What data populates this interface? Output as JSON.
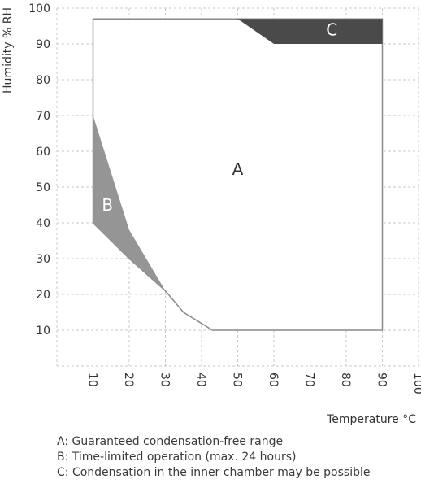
{
  "chart_data": {
    "type": "area",
    "title": "",
    "xlabel": "Temperature °C",
    "ylabel": "Humidity % RH",
    "xlim": [
      0,
      100
    ],
    "ylim": [
      0,
      100
    ],
    "x_ticks": [
      "10",
      "20",
      "30",
      "40",
      "50",
      "60",
      "70",
      "80",
      "90",
      "100"
    ],
    "y_ticks": [
      "10",
      "20",
      "30",
      "40",
      "50",
      "60",
      "70",
      "80",
      "90",
      "100"
    ],
    "grid": true,
    "regions": [
      {
        "label": "A",
        "color": "#ffffff",
        "points": [
          [
            10,
            97
          ],
          [
            90,
            97
          ],
          [
            90,
            10
          ],
          [
            43,
            10
          ],
          [
            35,
            15
          ],
          [
            30,
            21
          ],
          [
            20,
            30
          ],
          [
            10,
            40
          ]
        ]
      },
      {
        "label": "B",
        "color": "#959595",
        "points": [
          [
            10,
            70
          ],
          [
            20,
            38
          ],
          [
            30,
            21
          ],
          [
            20,
            30
          ],
          [
            10,
            40
          ]
        ]
      },
      {
        "label": "C",
        "color": "#4a4a4a",
        "points": [
          [
            50,
            97
          ],
          [
            90,
            97
          ],
          [
            90,
            90
          ],
          [
            60,
            90
          ]
        ]
      }
    ],
    "region_labels": [
      {
        "text": "A",
        "x": 50,
        "y": 55
      },
      {
        "text": "B",
        "x": 14,
        "y": 45
      },
      {
        "text": "C",
        "x": 76,
        "y": 94
      }
    ]
  },
  "legend": [
    "A: Guaranteed condensation-free range",
    "B: Time-limited operation (max. 24 hours)",
    "C: Condensation in the inner chamber may be possible"
  ]
}
